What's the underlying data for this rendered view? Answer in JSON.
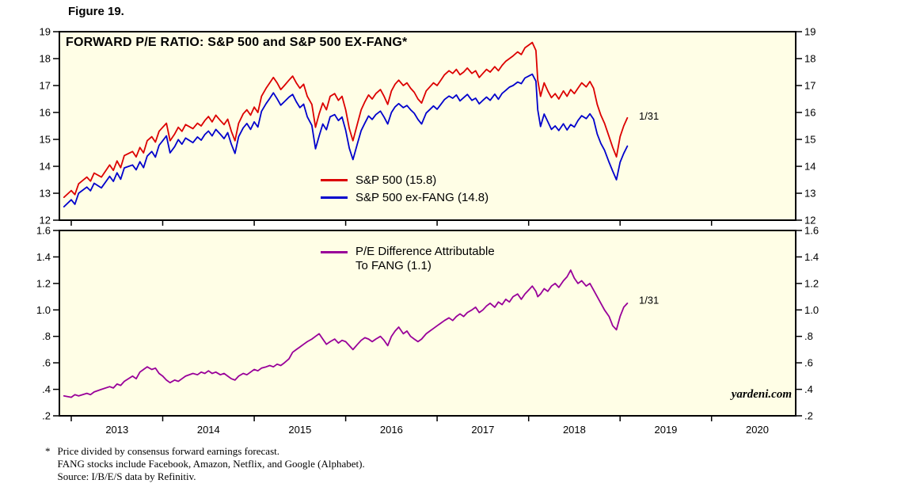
{
  "page": {
    "figure_label": "Figure 19."
  },
  "colors": {
    "panel_background": "#FFFEE6",
    "panel_border": "#000000",
    "sp500_red": "#DC0000",
    "ex_fang_blue": "#0000CC",
    "difference_purple": "#990099"
  },
  "watermark": "yardeni.com",
  "footnotes": {
    "marker": "*",
    "lines": [
      "Price divided by consensus forward earnings forecast.",
      "FANG stocks include Facebook, Amazon, Netflix, and Google (Alphabet).",
      "Source: I/B/E/S data by Refinitiv."
    ]
  },
  "chart_data": [
    {
      "name": "forward-pe-ratio",
      "type": "line",
      "title": "FORWARD P/E RATIO: S&P 500 and S&P 500 EX-FANG*",
      "x_range": [
        2012.87,
        2020.92
      ],
      "y_range": [
        12,
        19
      ],
      "y_ticks": [
        19,
        18,
        17,
        16,
        15,
        14,
        13,
        12
      ],
      "y_tick_labels": [
        "19",
        "18",
        "17",
        "16",
        "15",
        "14",
        "13",
        "12"
      ],
      "x_ticks": [
        2013,
        2014,
        2015,
        2016,
        2017,
        2018,
        2019,
        2020
      ],
      "annotation": {
        "text": "1/31",
        "x": 2019.18,
        "y": 15.85,
        "color": "#DC0000"
      },
      "x": [
        2012.92,
        2013.0,
        2013.04,
        2013.08,
        2013.17,
        2013.21,
        2013.25,
        2013.33,
        2013.42,
        2013.46,
        2013.5,
        2013.54,
        2013.58,
        2013.67,
        2013.71,
        2013.75,
        2013.79,
        2013.83,
        2013.88,
        2013.92,
        2013.96,
        2014.0,
        2014.04,
        2014.08,
        2014.13,
        2014.17,
        2014.21,
        2014.25,
        2014.33,
        2014.38,
        2014.42,
        2014.46,
        2014.5,
        2014.54,
        2014.58,
        2014.63,
        2014.67,
        2014.71,
        2014.75,
        2014.79,
        2014.83,
        2014.88,
        2014.92,
        2014.96,
        2015.0,
        2015.04,
        2015.08,
        2015.13,
        2015.17,
        2015.21,
        2015.25,
        2015.29,
        2015.33,
        2015.38,
        2015.42,
        2015.46,
        2015.5,
        2015.54,
        2015.58,
        2015.63,
        2015.67,
        2015.71,
        2015.75,
        2015.79,
        2015.83,
        2015.88,
        2015.92,
        2015.96,
        2016.0,
        2016.04,
        2016.08,
        2016.13,
        2016.17,
        2016.21,
        2016.25,
        2016.29,
        2016.33,
        2016.38,
        2016.42,
        2016.46,
        2016.5,
        2016.54,
        2016.58,
        2016.63,
        2016.67,
        2016.71,
        2016.75,
        2016.79,
        2016.83,
        2016.88,
        2016.92,
        2016.96,
        2017.0,
        2017.04,
        2017.08,
        2017.13,
        2017.17,
        2017.21,
        2017.25,
        2017.29,
        2017.33,
        2017.38,
        2017.42,
        2017.46,
        2017.5,
        2017.54,
        2017.58,
        2017.63,
        2017.67,
        2017.71,
        2017.75,
        2017.79,
        2017.83,
        2017.88,
        2017.92,
        2017.96,
        2018.0,
        2018.04,
        2018.08,
        2018.1,
        2018.13,
        2018.17,
        2018.21,
        2018.25,
        2018.29,
        2018.33,
        2018.38,
        2018.42,
        2018.46,
        2018.5,
        2018.54,
        2018.58,
        2018.63,
        2018.67,
        2018.71,
        2018.75,
        2018.79,
        2018.83,
        2018.88,
        2018.92,
        2018.96,
        2019.0,
        2019.04,
        2019.08
      ],
      "series": [
        {
          "id": "sp500",
          "name": "S&P 500 (15.8)",
          "color": "#DC0000",
          "values": [
            12.85,
            13.1,
            12.95,
            13.35,
            13.6,
            13.45,
            13.75,
            13.6,
            14.05,
            13.85,
            14.2,
            13.95,
            14.4,
            14.55,
            14.35,
            14.7,
            14.5,
            14.95,
            15.1,
            14.9,
            15.3,
            15.45,
            15.6,
            14.95,
            15.2,
            15.45,
            15.3,
            15.55,
            15.4,
            15.6,
            15.5,
            15.7,
            15.85,
            15.65,
            15.9,
            15.7,
            15.55,
            15.75,
            15.3,
            14.95,
            15.6,
            15.95,
            16.1,
            15.9,
            16.2,
            16.0,
            16.6,
            16.9,
            17.1,
            17.3,
            17.1,
            16.85,
            17.0,
            17.2,
            17.35,
            17.1,
            16.9,
            17.05,
            16.6,
            16.3,
            15.45,
            15.95,
            16.35,
            16.1,
            16.6,
            16.7,
            16.45,
            16.6,
            16.1,
            15.4,
            14.95,
            15.6,
            16.1,
            16.4,
            16.65,
            16.5,
            16.7,
            16.85,
            16.6,
            16.3,
            16.8,
            17.05,
            17.2,
            17.0,
            17.1,
            16.9,
            16.75,
            16.5,
            16.35,
            16.8,
            16.95,
            17.1,
            17.0,
            17.2,
            17.4,
            17.55,
            17.45,
            17.6,
            17.4,
            17.5,
            17.65,
            17.45,
            17.55,
            17.3,
            17.45,
            17.6,
            17.5,
            17.7,
            17.55,
            17.75,
            17.9,
            18.0,
            18.1,
            18.25,
            18.15,
            18.4,
            18.5,
            18.6,
            18.3,
            17.2,
            16.6,
            17.1,
            16.8,
            16.55,
            16.7,
            16.5,
            16.8,
            16.6,
            16.85,
            16.7,
            16.9,
            17.1,
            16.95,
            17.15,
            16.9,
            16.3,
            15.9,
            15.6,
            15.1,
            14.7,
            14.35,
            15.1,
            15.5,
            15.8
          ]
        },
        {
          "id": "sp500-ex-fang",
          "name": "S&P 500 ex-FANG (14.8)",
          "color": "#0000CC",
          "values": [
            12.5,
            12.76,
            12.59,
            13.0,
            13.23,
            13.09,
            13.37,
            13.2,
            13.63,
            13.44,
            13.76,
            13.52,
            13.94,
            14.05,
            13.87,
            14.17,
            13.95,
            14.38,
            14.55,
            14.34,
            14.78,
            14.95,
            15.13,
            14.5,
            14.73,
            14.99,
            14.82,
            15.05,
            14.88,
            15.09,
            14.97,
            15.18,
            15.31,
            15.13,
            15.37,
            15.19,
            15.03,
            15.25,
            14.82,
            14.48,
            15.1,
            15.43,
            15.59,
            15.37,
            15.65,
            15.46,
            16.04,
            16.33,
            16.52,
            16.73,
            16.51,
            16.27,
            16.4,
            16.57,
            16.67,
            16.4,
            16.18,
            16.31,
            15.84,
            15.52,
            14.65,
            15.13,
            15.57,
            15.36,
            15.84,
            15.92,
            15.7,
            15.83,
            15.34,
            14.67,
            14.25,
            14.86,
            15.33,
            15.61,
            15.87,
            15.74,
            15.92,
            16.05,
            15.83,
            15.57,
            16.0,
            16.21,
            16.33,
            16.18,
            16.26,
            16.1,
            15.97,
            15.74,
            15.57,
            15.98,
            16.11,
            16.24,
            16.12,
            16.3,
            16.48,
            16.61,
            16.53,
            16.65,
            16.43,
            16.55,
            16.67,
            16.45,
            16.53,
            16.32,
            16.45,
            16.57,
            16.45,
            16.68,
            16.49,
            16.71,
            16.82,
            16.94,
            17.0,
            17.13,
            17.07,
            17.28,
            17.35,
            17.42,
            17.16,
            16.1,
            15.48,
            15.94,
            15.66,
            15.37,
            15.5,
            15.33,
            15.58,
            15.35,
            15.55,
            15.46,
            15.7,
            15.88,
            15.77,
            15.95,
            15.75,
            15.2,
            14.85,
            14.6,
            14.15,
            13.82,
            13.5,
            14.15,
            14.48,
            14.75
          ]
        }
      ]
    },
    {
      "name": "pe-difference",
      "type": "line",
      "title": "",
      "legend_lines": [
        "P/E Difference Attributable",
        "To FANG (1.1)"
      ],
      "x_range": [
        2012.87,
        2020.92
      ],
      "y_range": [
        0.2,
        1.6
      ],
      "y_ticks": [
        1.6,
        1.4,
        1.2,
        1.0,
        0.8,
        0.6,
        0.4,
        0.2
      ],
      "y_tick_labels": [
        "1.6",
        "1.4",
        "1.2",
        "1.0",
        ".8",
        ".6",
        ".4",
        ".2"
      ],
      "x_ticks": [
        2013,
        2014,
        2015,
        2016,
        2017,
        2018,
        2019,
        2020
      ],
      "x_tick_labels": [
        "2013",
        "2014",
        "2015",
        "2016",
        "2017",
        "2018",
        "2019",
        "2020"
      ],
      "annotation": {
        "text": "1/31",
        "x": 2019.18,
        "y": 1.07,
        "color": "#990099"
      },
      "x": [
        2012.92,
        2013.0,
        2013.04,
        2013.08,
        2013.17,
        2013.21,
        2013.25,
        2013.33,
        2013.42,
        2013.46,
        2013.5,
        2013.54,
        2013.58,
        2013.67,
        2013.71,
        2013.75,
        2013.79,
        2013.83,
        2013.88,
        2013.92,
        2013.96,
        2014.0,
        2014.04,
        2014.08,
        2014.13,
        2014.17,
        2014.21,
        2014.25,
        2014.33,
        2014.38,
        2014.42,
        2014.46,
        2014.5,
        2014.54,
        2014.58,
        2014.63,
        2014.67,
        2014.71,
        2014.75,
        2014.79,
        2014.83,
        2014.88,
        2014.92,
        2014.96,
        2015.0,
        2015.04,
        2015.08,
        2015.13,
        2015.17,
        2015.21,
        2015.25,
        2015.29,
        2015.33,
        2015.38,
        2015.42,
        2015.46,
        2015.5,
        2015.54,
        2015.58,
        2015.63,
        2015.67,
        2015.71,
        2015.75,
        2015.79,
        2015.83,
        2015.88,
        2015.92,
        2015.96,
        2016.0,
        2016.04,
        2016.08,
        2016.13,
        2016.17,
        2016.21,
        2016.25,
        2016.29,
        2016.33,
        2016.38,
        2016.42,
        2016.46,
        2016.5,
        2016.54,
        2016.58,
        2016.63,
        2016.67,
        2016.71,
        2016.75,
        2016.79,
        2016.83,
        2016.88,
        2016.92,
        2016.96,
        2017.0,
        2017.04,
        2017.08,
        2017.13,
        2017.17,
        2017.21,
        2017.25,
        2017.29,
        2017.33,
        2017.38,
        2017.42,
        2017.46,
        2017.5,
        2017.54,
        2017.58,
        2017.63,
        2017.67,
        2017.71,
        2017.75,
        2017.79,
        2017.83,
        2017.88,
        2017.92,
        2017.96,
        2018.0,
        2018.04,
        2018.08,
        2018.1,
        2018.13,
        2018.17,
        2018.21,
        2018.25,
        2018.29,
        2018.33,
        2018.38,
        2018.42,
        2018.46,
        2018.5,
        2018.54,
        2018.58,
        2018.63,
        2018.67,
        2018.71,
        2018.75,
        2018.79,
        2018.83,
        2018.88,
        2018.92,
        2018.96,
        2019.0,
        2019.04,
        2019.08
      ],
      "series": [
        {
          "id": "pe-difference",
          "name": "P/E Difference Attributable To FANG (1.1)",
          "color": "#990099",
          "values": [
            0.35,
            0.34,
            0.36,
            0.35,
            0.37,
            0.36,
            0.38,
            0.4,
            0.42,
            0.41,
            0.44,
            0.43,
            0.46,
            0.5,
            0.48,
            0.53,
            0.55,
            0.57,
            0.55,
            0.56,
            0.52,
            0.5,
            0.47,
            0.45,
            0.47,
            0.46,
            0.48,
            0.5,
            0.52,
            0.51,
            0.53,
            0.52,
            0.54,
            0.52,
            0.53,
            0.51,
            0.52,
            0.5,
            0.48,
            0.47,
            0.5,
            0.52,
            0.51,
            0.53,
            0.55,
            0.54,
            0.56,
            0.57,
            0.58,
            0.57,
            0.59,
            0.58,
            0.6,
            0.63,
            0.68,
            0.7,
            0.72,
            0.74,
            0.76,
            0.78,
            0.8,
            0.82,
            0.78,
            0.74,
            0.76,
            0.78,
            0.75,
            0.77,
            0.76,
            0.73,
            0.7,
            0.74,
            0.77,
            0.79,
            0.78,
            0.76,
            0.78,
            0.8,
            0.77,
            0.73,
            0.8,
            0.84,
            0.87,
            0.82,
            0.84,
            0.8,
            0.78,
            0.76,
            0.78,
            0.82,
            0.84,
            0.86,
            0.88,
            0.9,
            0.92,
            0.94,
            0.92,
            0.95,
            0.97,
            0.95,
            0.98,
            1.0,
            1.02,
            0.98,
            1.0,
            1.03,
            1.05,
            1.02,
            1.06,
            1.04,
            1.08,
            1.06,
            1.1,
            1.12,
            1.08,
            1.12,
            1.15,
            1.18,
            1.14,
            1.1,
            1.12,
            1.16,
            1.14,
            1.18,
            1.2,
            1.17,
            1.22,
            1.25,
            1.3,
            1.24,
            1.2,
            1.22,
            1.18,
            1.2,
            1.15,
            1.1,
            1.05,
            1.0,
            0.95,
            0.88,
            0.85,
            0.95,
            1.02,
            1.05
          ]
        }
      ]
    }
  ]
}
